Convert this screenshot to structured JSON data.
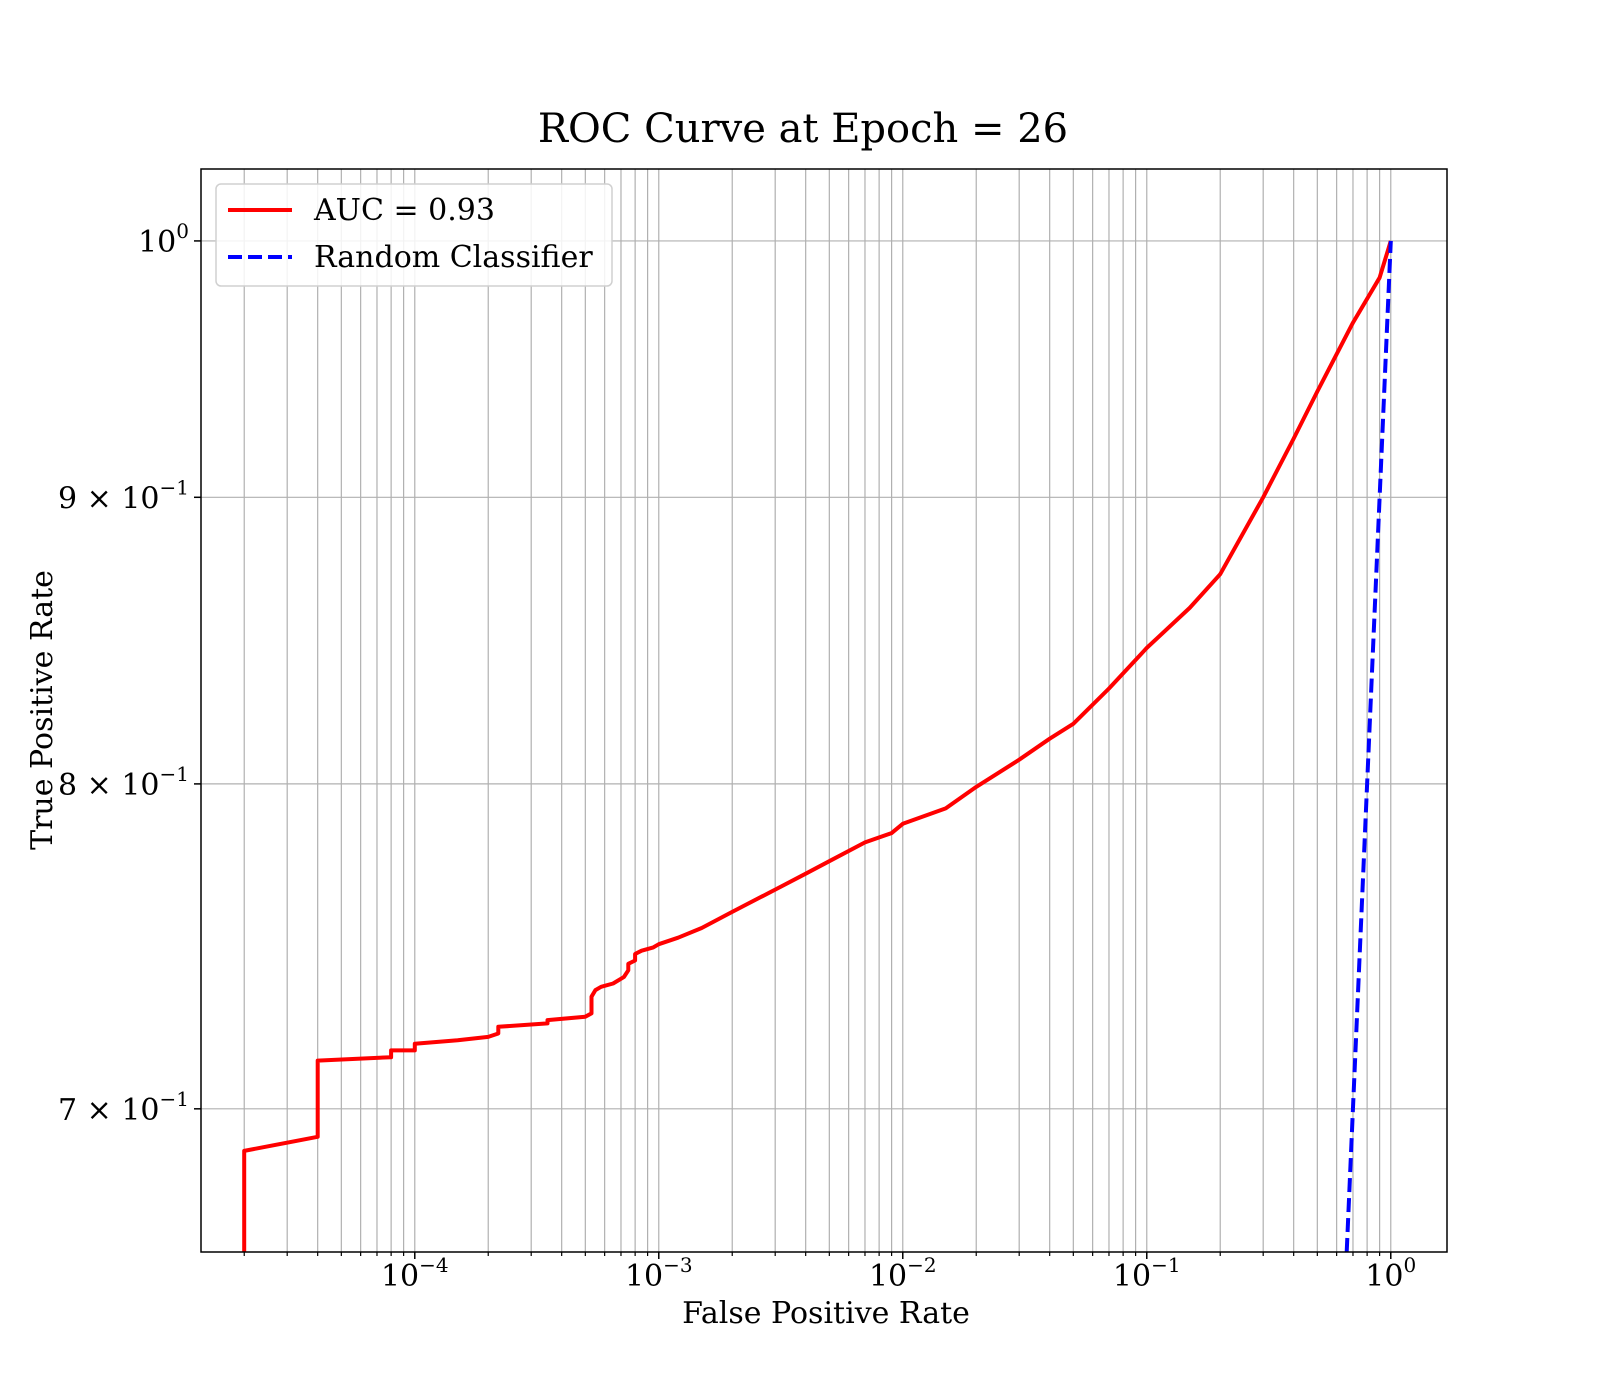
{
  "chart_data": {
    "type": "line",
    "title": "ROC Curve at Epoch = 26",
    "xlabel": "False Positive Rate",
    "ylabel": "True Positive Rate",
    "xscale": "log",
    "yscale": "log",
    "xlim": [
      1.33e-05,
      1.7
    ],
    "ylim": [
      0.66,
      1.03
    ],
    "grid": "both",
    "legend_position": "upper-left",
    "x_ticks": [
      {
        "value": 0.0001,
        "base": "10",
        "exp": "−4"
      },
      {
        "value": 0.001,
        "base": "10",
        "exp": "−3"
      },
      {
        "value": 0.01,
        "base": "10",
        "exp": "−2"
      },
      {
        "value": 0.1,
        "base": "10",
        "exp": "−1"
      },
      {
        "value": 1,
        "base": "10",
        "exp": "0"
      }
    ],
    "y_ticks": [
      {
        "value": 0.7,
        "base": "7 × 10",
        "exp": "−1"
      },
      {
        "value": 0.8,
        "base": "8 × 10",
        "exp": "−1"
      },
      {
        "value": 0.9,
        "base": "9 × 10",
        "exp": "−1"
      },
      {
        "value": 1.0,
        "base": "10",
        "exp": "0"
      }
    ],
    "series": [
      {
        "name": "AUC = 0.93",
        "color": "#ff0000",
        "style": "solid",
        "x": [
          2e-05,
          2e-05,
          2e-05,
          4e-05,
          4e-05,
          8e-05,
          8e-05,
          0.0001,
          0.0001,
          0.00015,
          0.0002,
          0.00022,
          0.00022,
          0.00035,
          0.00035,
          0.0005,
          0.00053,
          0.00053,
          0.00055,
          0.00058,
          0.00065,
          0.00072,
          0.00075,
          0.00075,
          0.0008,
          0.0008,
          0.00085,
          0.00095,
          0.001,
          0.0012,
          0.0015,
          0.002,
          0.003,
          0.004,
          0.005,
          0.007,
          0.009,
          0.01,
          0.015,
          0.02,
          0.03,
          0.04,
          0.05,
          0.07,
          0.1,
          0.15,
          0.2,
          0.3,
          0.4,
          0.5,
          0.7,
          0.9,
          1.0
        ],
        "y": [
          0.66,
          0.672,
          0.688,
          0.692,
          0.714,
          0.715,
          0.717,
          0.717,
          0.719,
          0.72,
          0.721,
          0.722,
          0.724,
          0.725,
          0.726,
          0.727,
          0.728,
          0.733,
          0.735,
          0.736,
          0.737,
          0.739,
          0.741,
          0.743,
          0.744,
          0.746,
          0.747,
          0.748,
          0.749,
          0.751,
          0.754,
          0.759,
          0.766,
          0.771,
          0.775,
          0.781,
          0.784,
          0.787,
          0.792,
          0.799,
          0.808,
          0.815,
          0.82,
          0.832,
          0.846,
          0.86,
          0.872,
          0.9,
          0.922,
          0.94,
          0.967,
          0.985,
          1.0
        ]
      },
      {
        "name": "Random Classifier",
        "color": "#0000ff",
        "style": "dashed",
        "x": [
          0.66,
          1.0
        ],
        "y": [
          0.66,
          1.0
        ]
      }
    ]
  }
}
